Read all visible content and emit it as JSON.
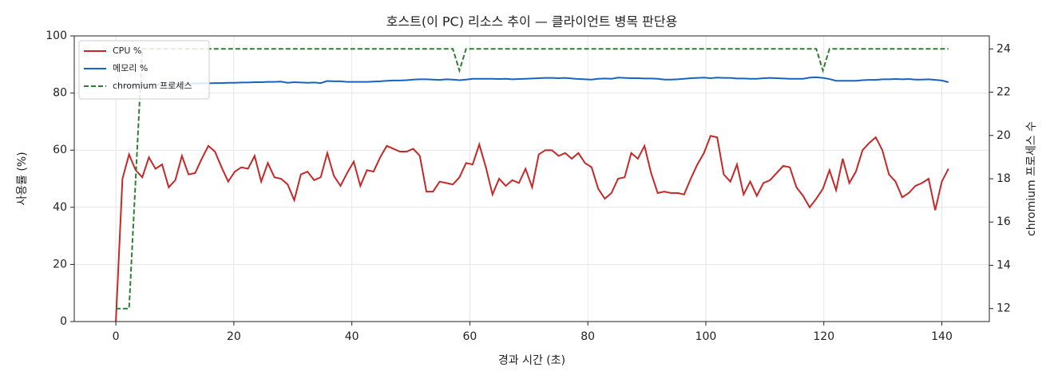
{
  "chart_data": {
    "type": "line",
    "title": "호스트(이 PC) 리소스 추이 — 클라이언트 병목 판단용",
    "x_label": "경과 시간 (초)",
    "y_label": "사용률 (%)",
    "y2_label": "chromium 프로세스 수",
    "x": [
      0,
      1.12,
      2.24,
      3.36,
      4.48,
      5.6,
      6.72,
      7.84,
      8.96,
      10.08,
      11.2,
      12.32,
      13.44,
      14.56,
      15.68,
      16.8,
      17.92,
      19.04,
      20.16,
      21.28,
      22.4,
      23.52,
      24.64,
      25.76,
      26.88,
      28,
      29.12,
      30.24,
      31.36,
      32.48,
      33.6,
      34.72,
      35.84,
      36.96,
      38.08,
      39.2,
      40.32,
      41.44,
      42.56,
      43.68,
      44.8,
      45.92,
      47.04,
      48.16,
      49.28,
      50.4,
      51.52,
      52.64,
      53.76,
      54.88,
      56,
      57.12,
      58.24,
      59.36,
      60.48,
      61.6,
      62.72,
      63.84,
      64.96,
      66.08,
      67.2,
      68.32,
      69.44,
      70.56,
      71.68,
      72.8,
      73.92,
      75.04,
      76.16,
      77.28,
      78.4,
      79.52,
      80.64,
      81.76,
      82.88,
      84,
      85.12,
      86.24,
      87.36,
      88.48,
      89.6,
      90.72,
      91.84,
      92.96,
      94.08,
      95.2,
      96.32,
      97.44,
      98.56,
      99.68,
      100.8,
      101.92,
      103.04,
      104.16,
      105.28,
      106.4,
      107.52,
      108.64,
      109.76,
      110.88,
      112,
      113.12,
      114.24,
      115.36,
      116.48,
      117.6,
      118.72,
      119.84,
      120.96,
      122.08,
      123.2,
      124.32,
      125.44,
      126.56,
      127.68,
      128.8,
      129.92,
      131.04,
      132.16,
      133.28,
      134.4,
      135.52,
      136.64,
      137.76,
      138.88,
      140,
      141.12
    ],
    "series": [
      {
        "name": "CPU %",
        "color": "#c62828",
        "linestyle": "solid",
        "axis": "y",
        "values": [
          0,
          50,
          58.5,
          53,
          50.5,
          57.5,
          53.5,
          55,
          47,
          49.5,
          58,
          51.5,
          52,
          57,
          61.5,
          59.5,
          54,
          49,
          52.5,
          54,
          53.5,
          58,
          49,
          55.5,
          50.5,
          50,
          48,
          42.5,
          51.5,
          52.5,
          49.5,
          50.5,
          59,
          51,
          47.5,
          52,
          56,
          47.5,
          53,
          52.5,
          57.5,
          61.5,
          60.5,
          59.5,
          59.5,
          60.5,
          58,
          45.5,
          45.5,
          49,
          48.5,
          48,
          50.5,
          55.5,
          55,
          62,
          54,
          44.5,
          50,
          47.5,
          49.5,
          48.5,
          53.5,
          47,
          58.5,
          60,
          60,
          58,
          59,
          57,
          59,
          55.5,
          54,
          46.5,
          43,
          45,
          50,
          50.5,
          59,
          57,
          61.5,
          52,
          45,
          45.5,
          45,
          45,
          44.5,
          50,
          55,
          59,
          65,
          64.5,
          51.5,
          49,
          55,
          44.5,
          49,
          44,
          48.5,
          49.5,
          52,
          54.5,
          54,
          47,
          44,
          40,
          43,
          46.5,
          53,
          46,
          57,
          48.5,
          52.5,
          60,
          62.5,
          64.5,
          60,
          51.5,
          49,
          43.5,
          45,
          47.5,
          48.5,
          50,
          39,
          49,
          53.5
        ]
      },
      {
        "name": "메모리 %",
        "color": "#1565c0",
        "linestyle": "solid",
        "axis": "y",
        "values": [
          82.5,
          82.6,
          82.7,
          82.8,
          82.9,
          83,
          83,
          83.1,
          83.1,
          83.2,
          83.2,
          83.3,
          83.3,
          83.4,
          83.4,
          83.5,
          83.5,
          83.6,
          83.6,
          83.7,
          83.7,
          83.8,
          83.8,
          83.9,
          83.9,
          84,
          83.6,
          83.8,
          83.7,
          83.6,
          83.7,
          83.5,
          84.2,
          84.1,
          84.1,
          83.9,
          83.9,
          83.9,
          83.9,
          84,
          84.1,
          84.3,
          84.4,
          84.4,
          84.5,
          84.7,
          84.8,
          84.8,
          84.7,
          84.6,
          84.8,
          84.7,
          84.5,
          84.7,
          85,
          85,
          85,
          85,
          84.9,
          85,
          84.8,
          84.9,
          85,
          85.1,
          85.2,
          85.3,
          85.3,
          85.2,
          85.3,
          85.1,
          84.9,
          84.8,
          84.7,
          85,
          85.1,
          85,
          85.4,
          85.3,
          85.2,
          85.2,
          85.1,
          85.1,
          85,
          84.7,
          84.7,
          84.8,
          85,
          85.2,
          85.3,
          85.4,
          85.2,
          85.4,
          85.3,
          85.3,
          85.1,
          85.1,
          85,
          85,
          85.2,
          85.3,
          85.2,
          85.1,
          85,
          85,
          85,
          85.4,
          85.5,
          85.3,
          84.9,
          84.3,
          84.3,
          84.3,
          84.3,
          84.5,
          84.6,
          84.6,
          84.8,
          84.8,
          84.9,
          84.8,
          84.9,
          84.7,
          84.7,
          84.8,
          84.6,
          84.4,
          83.8
        ]
      },
      {
        "name": "chromium 프로세스",
        "color": "#2e7d32",
        "linestyle": "dashed",
        "axis": "y2",
        "values": [
          12,
          12,
          12,
          18,
          24,
          24,
          24,
          24,
          24,
          24,
          24,
          24,
          24,
          24,
          24,
          24,
          24,
          24,
          24,
          24,
          24,
          24,
          24,
          24,
          24,
          24,
          24,
          24,
          24,
          24,
          24,
          24,
          24,
          24,
          24,
          24,
          24,
          24,
          24,
          24,
          24,
          24,
          24,
          24,
          24,
          24,
          24,
          24,
          24,
          24,
          24,
          24,
          23,
          24,
          24,
          24,
          24,
          24,
          24,
          24,
          24,
          24,
          24,
          24,
          24,
          24,
          24,
          24,
          24,
          24,
          24,
          24,
          24,
          24,
          24,
          24,
          24,
          24,
          24,
          24,
          24,
          24,
          24,
          24,
          24,
          24,
          24,
          24,
          24,
          24,
          24,
          24,
          24,
          24,
          24,
          24,
          24,
          24,
          24,
          24,
          24,
          24,
          24,
          24,
          24,
          24,
          24,
          23,
          24,
          24,
          24,
          24,
          24,
          24,
          24,
          24,
          24,
          24,
          24,
          24,
          24,
          24,
          24,
          24,
          24,
          24,
          24
        ]
      }
    ],
    "xlim": [
      -7.05,
      148.05
    ],
    "xticks": [
      0,
      20,
      40,
      60,
      80,
      100,
      120,
      140
    ],
    "ylim": [
      0,
      100
    ],
    "yticks": [
      0,
      20,
      40,
      60,
      80,
      100
    ],
    "y2lim": [
      11.4,
      24.6
    ],
    "y2ticks": [
      12,
      14,
      16,
      18,
      20,
      22,
      24
    ],
    "grid": true,
    "legend": "upper-left"
  }
}
